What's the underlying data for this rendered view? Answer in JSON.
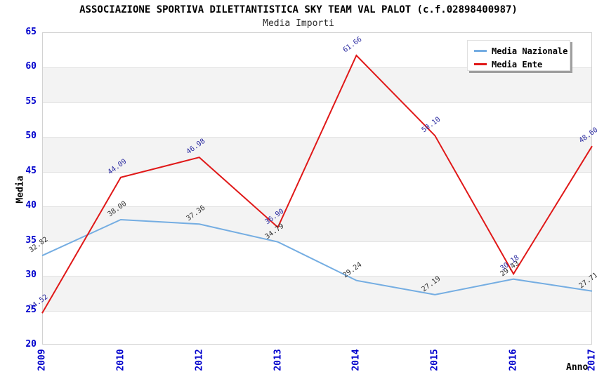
{
  "title": "ASSOCIAZIONE SPORTIVA DILETTANTISTICA SKY TEAM VAL PALOT (c.f.02898400987)",
  "subtitle": "Media Importi",
  "axes": {
    "y_title": "Media",
    "x_title": "Anno",
    "y_ticks": [
      "65",
      "60",
      "55",
      "50",
      "45",
      "40",
      "35",
      "30",
      "25",
      "20"
    ],
    "x_tick_labels": [
      "2009",
      "2010",
      "2012",
      "2013",
      "2014",
      "2015",
      "2016",
      "2017"
    ],
    "tick_color": "#0000cc"
  },
  "legend": {
    "position": "top-right",
    "entries": [
      {
        "label": "Media Nazionale",
        "color": "#74ade2"
      },
      {
        "label": "Media Ente",
        "color": "#e01818"
      }
    ]
  },
  "colors": {
    "band_gray": "#f3f3f3",
    "plot_border": "#d2d2d2",
    "nazionale_line": "#74ade2",
    "ente_line": "#e01818",
    "nazionale_label": "#303030",
    "ente_label": "#2a2aa0"
  },
  "chart_data": {
    "type": "line",
    "x": [
      "2009",
      "2010",
      "2012",
      "2013",
      "2014",
      "2015",
      "2016",
      "2017"
    ],
    "series": [
      {
        "name": "Media Nazionale",
        "color": "#74ade2",
        "label_color": "#303030",
        "values": [
          32.82,
          38.0,
          37.36,
          34.79,
          29.24,
          27.19,
          29.43,
          27.71
        ],
        "point_labels": [
          "32.82",
          "38.00",
          "37.36",
          "34.79",
          "29.24",
          "27.19",
          "29.43",
          "27.71"
        ]
      },
      {
        "name": "Media Ente",
        "color": "#e01818",
        "label_color": "#2a2aa0",
        "values": [
          24.52,
          44.09,
          46.98,
          36.9,
          61.66,
          50.1,
          30.18,
          48.6
        ],
        "point_labels": [
          "24.52",
          "44.09",
          "46.98",
          "36.90",
          "61.66",
          "50.10",
          "30.18",
          "48.60"
        ]
      }
    ],
    "title": "ASSOCIAZIONE SPORTIVA DILETTANTISTICA SKY TEAM VAL PALOT (c.f.02898400987)",
    "subtitle": "Media Importi",
    "xlabel": "Anno",
    "ylabel": "Media",
    "ylim": [
      20,
      65
    ],
    "ytick_step": 5,
    "grid": "alternating-bands",
    "legend_position": "top-right"
  }
}
